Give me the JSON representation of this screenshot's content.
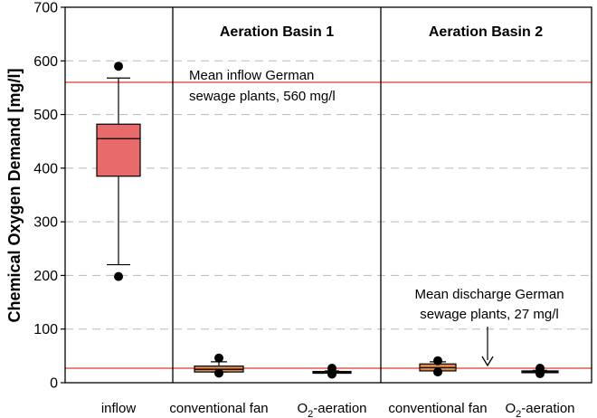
{
  "chart_data": {
    "type": "box",
    "ylabel": "Chemical Oxygen Demand  [mg/l]",
    "ylim": [
      0,
      700
    ],
    "yticks": [
      0,
      100,
      200,
      300,
      400,
      500,
      600,
      700
    ],
    "grid": "horizontal-dashed",
    "panels": [
      {
        "title": ""
      },
      {
        "title": "Aeration Basin 1"
      },
      {
        "title": "Aeration Basin 2"
      }
    ],
    "boxes": [
      {
        "label": "inflow",
        "panel": 0,
        "whisker_low": 220,
        "q1": 385,
        "median": 455,
        "q3": 482,
        "whisker_high": 568,
        "outliers": [
          590,
          198
        ],
        "color": "#e86a6a"
      },
      {
        "label": "conventional fan",
        "panel": 1,
        "whisker_low": 20,
        "q1": 20,
        "median": 25,
        "q3": 31,
        "whisker_high": 39,
        "outliers": [
          46,
          18
        ],
        "color": "#e08a4a"
      },
      {
        "label": "O2-aeration",
        "label_main": "O",
        "label_sub": "2",
        "label_rest": "-aeration",
        "panel": 1,
        "whisker_low": 18,
        "q1": 18,
        "median": 19,
        "q3": 21,
        "whisker_high": 22,
        "outliers": [
          27,
          16
        ],
        "color": "#e08a4a"
      },
      {
        "label": "conventional fan",
        "panel": 2,
        "whisker_low": 22,
        "q1": 22,
        "median": 28,
        "q3": 35,
        "whisker_high": 39,
        "outliers": [
          41,
          20
        ],
        "color": "#e08a4a"
      },
      {
        "label": "O2-aeration",
        "label_main": "O",
        "label_sub": "2",
        "label_rest": "-aeration",
        "panel": 2,
        "whisker_low": 19,
        "q1": 19,
        "median": 20,
        "q3": 22,
        "whisker_high": 23,
        "outliers": [
          27,
          17
        ],
        "color": "#e08a4a"
      }
    ],
    "reference_lines": [
      {
        "value": 560,
        "color": "#e03a2e",
        "annotation": [
          "Mean inflow German",
          "sewage plants, 560 mg/l"
        ]
      },
      {
        "value": 27,
        "color": "#e03a2e",
        "annotation": [
          "Mean discharge German",
          "sewage plants, 27 mg/l"
        ]
      }
    ]
  }
}
